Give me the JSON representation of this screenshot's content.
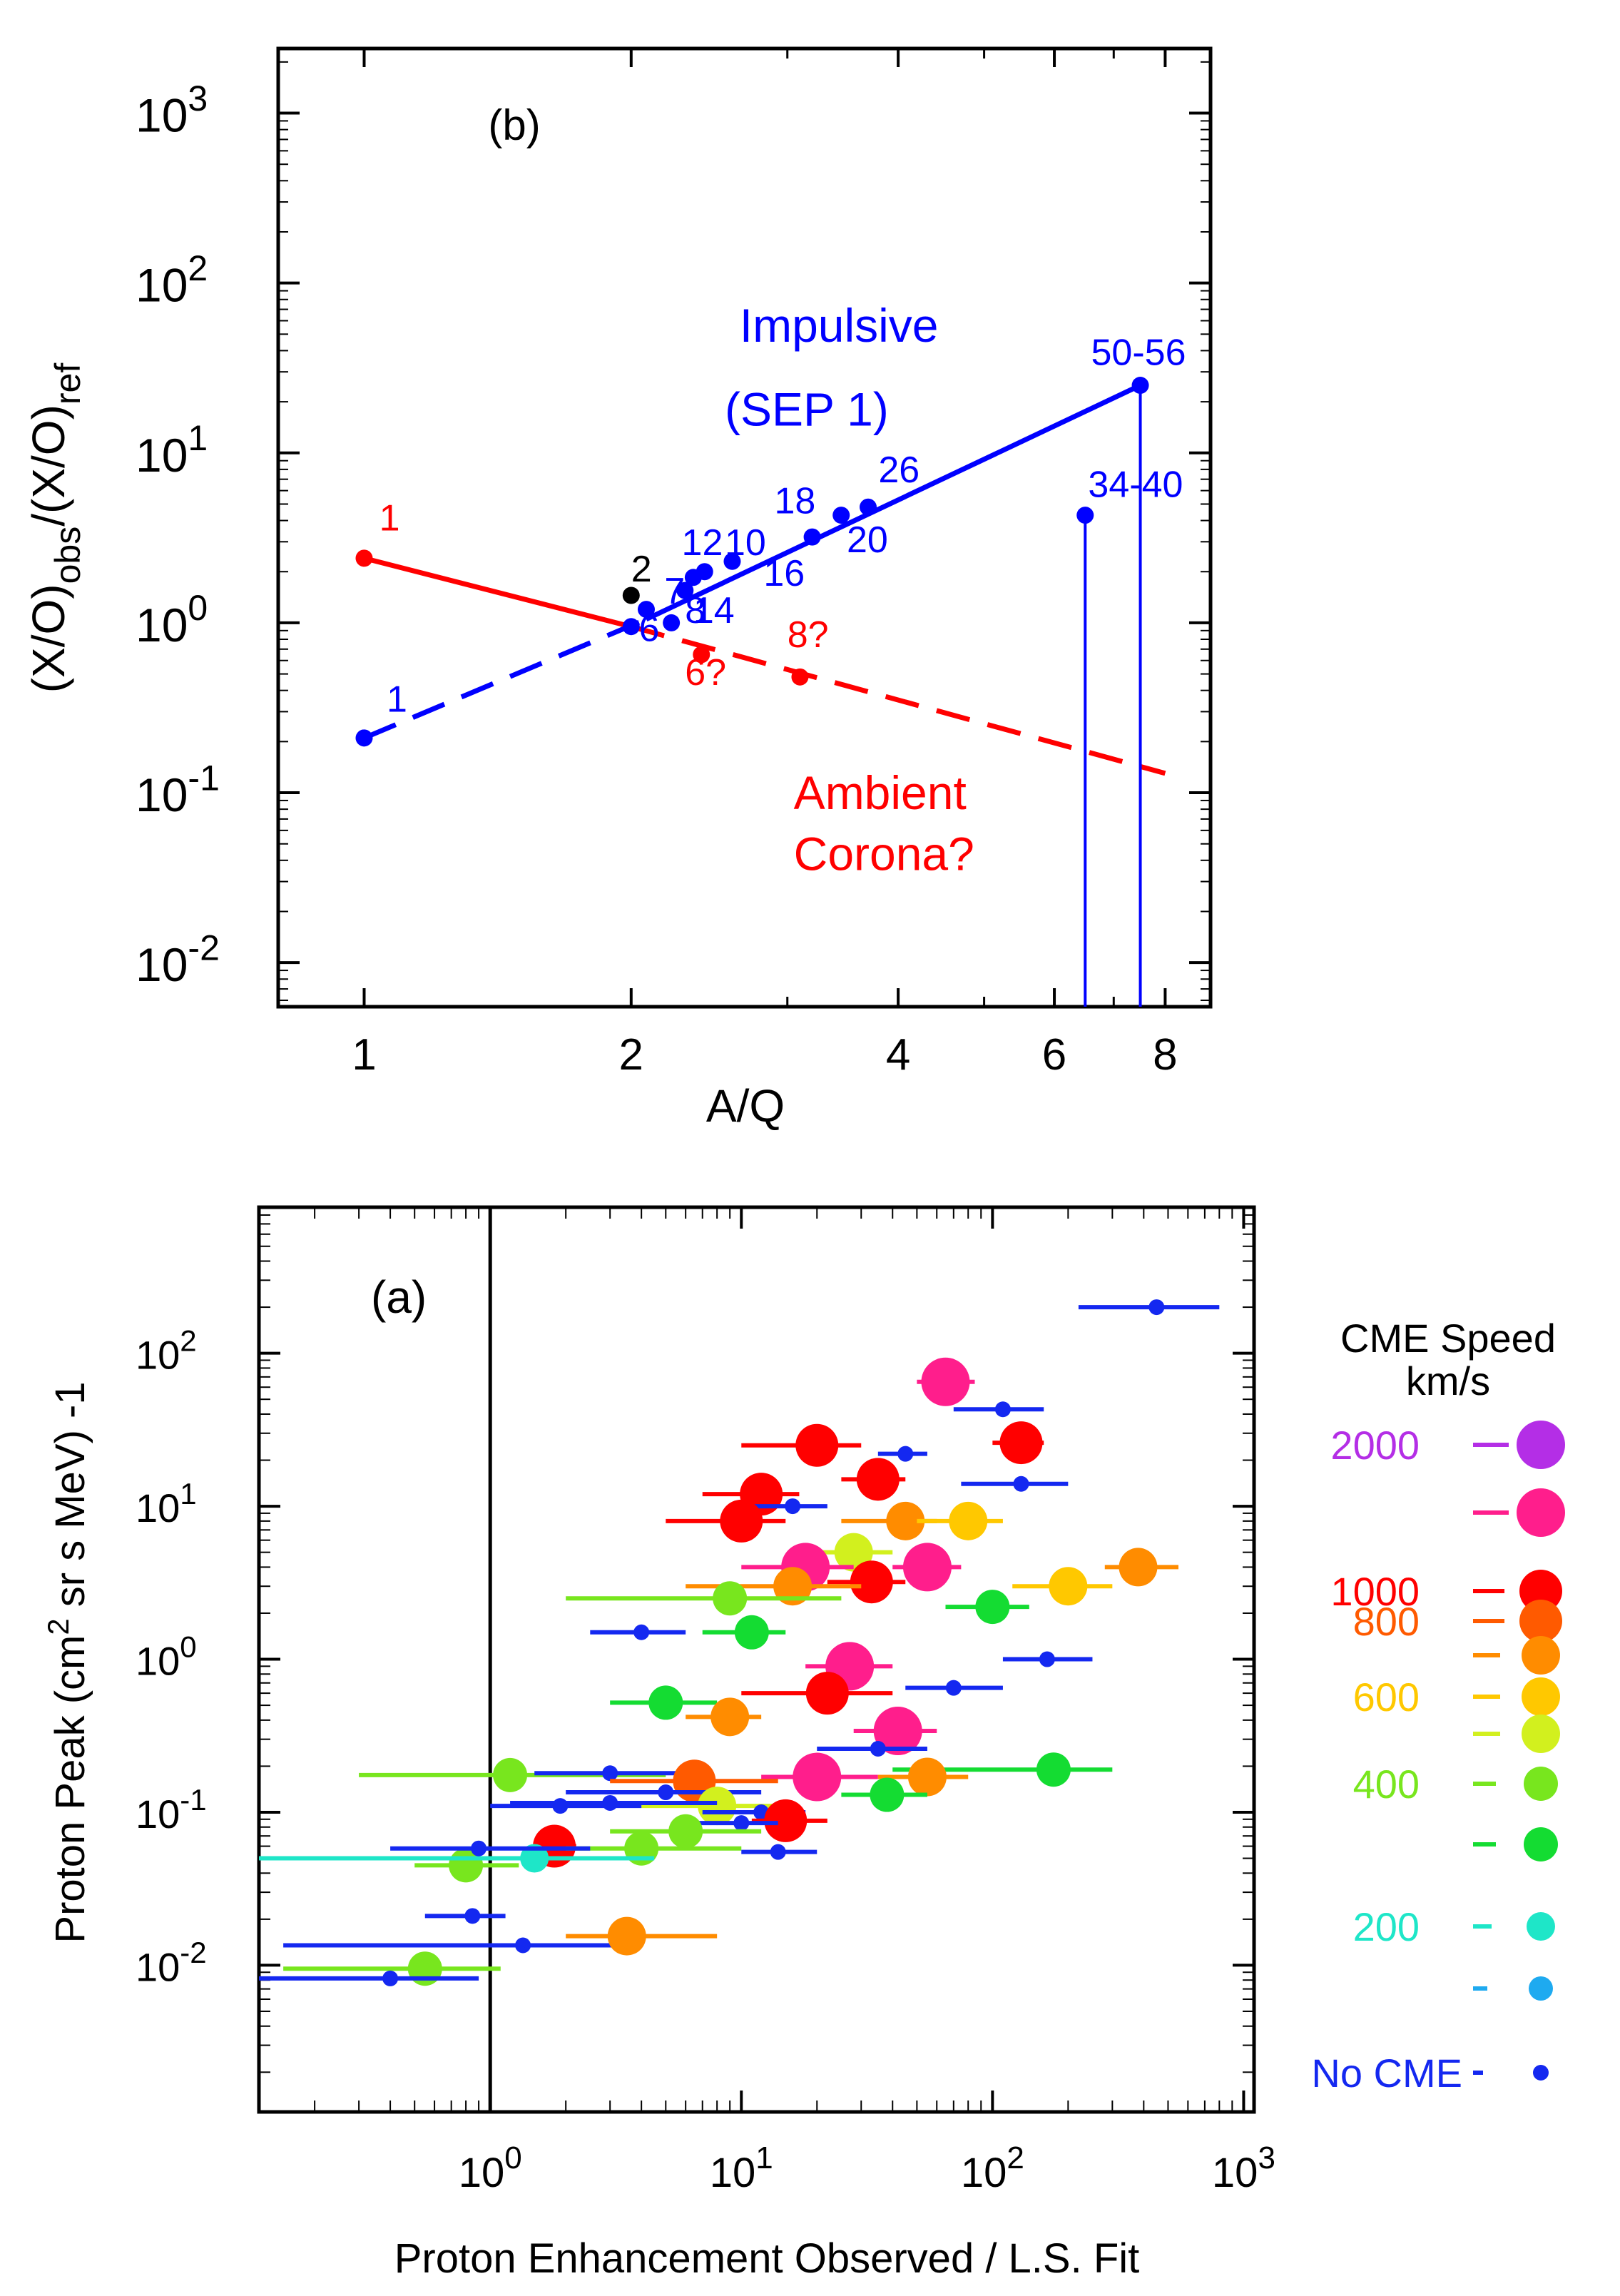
{
  "chart_data": [
    {
      "type": "line",
      "panel": "(b)",
      "xscale": "log",
      "yscale": "log",
      "xlim": [
        0.8,
        9.0
      ],
      "ylim": [
        0.0055,
        2400
      ],
      "xlabel": "A/Q",
      "ylabel_parts": [
        "(X/O)",
        "obs",
        "/(X/O)",
        "ref"
      ],
      "xticks": [
        {
          "v": 1,
          "label": "1"
        },
        {
          "v": 2,
          "label": "2"
        },
        {
          "v": 4,
          "label": "4"
        },
        {
          "v": 6,
          "label": "6"
        },
        {
          "v": 8,
          "label": "8"
        }
      ],
      "yticks": [
        {
          "v": 1000,
          "base": "10",
          "exp": "3"
        },
        {
          "v": 100,
          "base": "10",
          "exp": "2"
        },
        {
          "v": 10,
          "base": "10",
          "exp": "1"
        },
        {
          "v": 1,
          "base": "10",
          "exp": "0"
        },
        {
          "v": 0.1,
          "base": "10",
          "exp": "-1"
        },
        {
          "v": 0.01,
          "base": "10",
          "exp": "-2"
        }
      ],
      "series": [
        {
          "name": "Impulsive (SEP 1) fit",
          "color": "#0000ff",
          "style": "solid",
          "points": [
            [
              2.08,
              1.05
            ],
            [
              7.5,
              25
            ]
          ]
        },
        {
          "name": "Impulsive extrapolation",
          "color": "#0000ff",
          "style": "dashed",
          "points": [
            [
              1.0,
              0.21
            ],
            [
              2.08,
              1.05
            ]
          ]
        },
        {
          "name": "Ambient corona fit",
          "color": "#ff0000",
          "style": "solid",
          "points": [
            [
              1.0,
              2.4
            ],
            [
              2.0,
              0.95
            ]
          ]
        },
        {
          "name": "Ambient corona extrapolation",
          "color": "#ff0000",
          "style": "dashed",
          "points": [
            [
              2.0,
              0.95
            ],
            [
              8.0,
              0.13
            ]
          ]
        }
      ],
      "points": [
        {
          "x": 1.0,
          "y": 2.4,
          "color": "#ff0000",
          "label": "1",
          "lx": 1.04,
          "ly": 3.5
        },
        {
          "x": 1.0,
          "y": 0.21,
          "color": "#0000ff",
          "label": "1",
          "lx": 1.06,
          "ly": 0.3
        },
        {
          "x": 2.0,
          "y": 1.45,
          "color": "#000000",
          "label": "2",
          "lx": 2.0,
          "ly": 1.75
        },
        {
          "x": 2.08,
          "y": 1.2,
          "color": "#0000ff",
          "label": "7",
          "lx": 2.18,
          "ly": 1.3
        },
        {
          "x": 2.0,
          "y": 0.95,
          "color": "#0000ff",
          "label": "6",
          "lx": 2.04,
          "ly": 0.78
        },
        {
          "x": 2.3,
          "y": 1.55,
          "color": "#0000ff",
          "label": "12",
          "lx": 2.28,
          "ly": 2.5
        },
        {
          "x": 2.35,
          "y": 1.85,
          "color": "#0000ff",
          "label": "10",
          "lx": 2.55,
          "ly": 2.5
        },
        {
          "x": 2.42,
          "y": 2.0,
          "color": "#0000ff",
          "label": "16",
          "lx": 2.82,
          "ly": 1.65
        },
        {
          "x": 2.22,
          "y": 1.0,
          "color": "#0000ff",
          "label": "14",
          "lx": 2.35,
          "ly": 1.0
        },
        {
          "x": 2.6,
          "y": 2.3,
          "color": "#0000ff",
          "label": "8",
          "lx": 2.3,
          "ly": 1.0
        },
        {
          "x": 3.2,
          "y": 3.2,
          "color": "#0000ff",
          "label": "18",
          "lx": 2.9,
          "ly": 4.4
        },
        {
          "x": 3.45,
          "y": 4.3,
          "color": "#0000ff",
          "label": "20",
          "lx": 3.5,
          "ly": 2.6
        },
        {
          "x": 3.7,
          "y": 4.8,
          "color": "#0000ff",
          "label": "26",
          "lx": 3.8,
          "ly": 6.7
        },
        {
          "x": 2.4,
          "y": 0.65,
          "color": "#ff0000",
          "label": "6?",
          "lx": 2.3,
          "ly": 0.43
        },
        {
          "x": 3.1,
          "y": 0.48,
          "color": "#ff0000",
          "label": "8?",
          "lx": 3.0,
          "ly": 0.72
        },
        {
          "x": 6.5,
          "y": 4.3,
          "color": "#0000ff",
          "label": "34-40",
          "lx": 6.55,
          "ly": 5.5
        },
        {
          "x": 7.5,
          "y": 25,
          "color": "#0000ff",
          "label": "50-56",
          "lx": 6.6,
          "ly": 33
        }
      ],
      "upper_limits": [
        {
          "x": 6.5,
          "y": 4.3,
          "color": "#0000ff"
        },
        {
          "x": 7.5,
          "y": 25,
          "color": "#0000ff"
        }
      ],
      "annotations": [
        {
          "text": "(b)",
          "x": 1.38,
          "y": 700,
          "color": "#000000"
        },
        {
          "text": "Impulsive",
          "x": 2.65,
          "y": 45,
          "color": "#0000ff"
        },
        {
          "text": "(SEP 1)",
          "x": 2.55,
          "y": 14.5,
          "color": "#0000ff"
        },
        {
          "text": "Ambient",
          "x": 3.05,
          "y": 0.08,
          "color": "#ff0000"
        },
        {
          "text": "Corona?",
          "x": 3.05,
          "y": 0.035,
          "color": "#ff0000"
        }
      ]
    },
    {
      "type": "scatter",
      "panel": "(a)",
      "xscale": "log",
      "yscale": "log",
      "xlim": [
        0.12,
        1100
      ],
      "ylim": [
        0.0011,
        900
      ],
      "xlabel": "Proton Enhancement Observed / L.S. Fit",
      "ylabel": "Proton Peak (cm2 sr s MeV) -1",
      "ylabel_parts": [
        "Proton Peak (cm",
        "2",
        " sr s MeV) -1"
      ],
      "vertical_line_x": 1,
      "xticks": [
        {
          "v": 1,
          "base": "10",
          "exp": "0"
        },
        {
          "v": 10,
          "base": "10",
          "exp": "1"
        },
        {
          "v": 100,
          "base": "10",
          "exp": "2"
        },
        {
          "v": 1000,
          "base": "10",
          "exp": "3"
        }
      ],
      "yticks": [
        {
          "v": 100,
          "base": "10",
          "exp": "2"
        },
        {
          "v": 10,
          "base": "10",
          "exp": "1"
        },
        {
          "v": 1,
          "base": "10",
          "exp": "0"
        },
        {
          "v": 0.1,
          "base": "10",
          "exp": "-1"
        },
        {
          "v": 0.01,
          "base": "10",
          "exp": "-2"
        }
      ],
      "annotation": "(a)",
      "legend": {
        "title": "CME Speed",
        "subtitle": "km/s",
        "entries": [
          {
            "label": "2000",
            "color": "#b42ee6",
            "size": 7
          },
          {
            "label": "",
            "color": "#ff1e8c",
            "size": 7
          },
          {
            "label": "1000",
            "color": "#ff0000",
            "size": 6
          },
          {
            "label": "800",
            "color": "#ff5a00",
            "size": 6
          },
          {
            "label": "",
            "color": "#ff8c00",
            "size": 5
          },
          {
            "label": "600",
            "color": "#ffc800",
            "size": 5
          },
          {
            "label": "",
            "color": "#d2f01e",
            "size": 5
          },
          {
            "label": "400",
            "color": "#78e61e",
            "size": 4
          },
          {
            "label": "",
            "color": "#14dc32",
            "size": 4
          },
          {
            "label": "200",
            "color": "#1ee6c8",
            "size": 3
          },
          {
            "label": "",
            "color": "#1eaaf0",
            "size": 2
          },
          {
            "label": "No CME",
            "color": "#1428f0",
            "size": 1
          }
        ]
      },
      "points": [
        {
          "x": 450,
          "y": 200,
          "xlo": 220,
          "xhi": 800,
          "color": "#1428f0",
          "size": 1
        },
        {
          "x": 65,
          "y": 65,
          "xlo": 50,
          "xhi": 85,
          "color": "#ff1e8c",
          "size": 7
        },
        {
          "x": 110,
          "y": 43,
          "xlo": 70,
          "xhi": 160,
          "color": "#1428f0",
          "size": 1
        },
        {
          "x": 20,
          "y": 25,
          "xlo": 10,
          "xhi": 30,
          "color": "#ff0000",
          "size": 6
        },
        {
          "x": 130,
          "y": 26,
          "xlo": 100,
          "xhi": 160,
          "color": "#ff0000",
          "size": 6
        },
        {
          "x": 45,
          "y": 22,
          "xlo": 35,
          "xhi": 55,
          "color": "#1428f0",
          "size": 1
        },
        {
          "x": 35,
          "y": 15,
          "xlo": 25,
          "xhi": 45,
          "color": "#ff0000",
          "size": 6
        },
        {
          "x": 130,
          "y": 14,
          "xlo": 75,
          "xhi": 200,
          "color": "#1428f0",
          "size": 1
        },
        {
          "x": 12,
          "y": 12,
          "xlo": 7,
          "xhi": 17,
          "color": "#ff0000",
          "size": 6
        },
        {
          "x": 16,
          "y": 10,
          "xlo": 11,
          "xhi": 22,
          "color": "#1428f0",
          "size": 1
        },
        {
          "x": 10,
          "y": 8,
          "xlo": 5,
          "xhi": 15,
          "color": "#ff0000",
          "size": 6
        },
        {
          "x": 45,
          "y": 8,
          "xlo": 25,
          "xhi": 60,
          "color": "#ff8c00",
          "size": 5
        },
        {
          "x": 80,
          "y": 8,
          "xlo": 50,
          "xhi": 110,
          "color": "#ffc800",
          "size": 5
        },
        {
          "x": 28,
          "y": 5,
          "xlo": 18,
          "xhi": 40,
          "color": "#d2f01e",
          "size": 5
        },
        {
          "x": 18,
          "y": 4,
          "xlo": 10,
          "xhi": 28,
          "color": "#ff1e8c",
          "size": 7
        },
        {
          "x": 55,
          "y": 4,
          "xlo": 40,
          "xhi": 75,
          "color": "#ff1e8c",
          "size": 7
        },
        {
          "x": 380,
          "y": 4,
          "xlo": 280,
          "xhi": 550,
          "color": "#ff8c00",
          "size": 5
        },
        {
          "x": 33,
          "y": 3.2,
          "xlo": 22,
          "xhi": 45,
          "color": "#ff0000",
          "size": 6
        },
        {
          "x": 16,
          "y": 3,
          "xlo": 6,
          "xhi": 30,
          "color": "#ff8c00",
          "size": 5
        },
        {
          "x": 200,
          "y": 3,
          "xlo": 120,
          "xhi": 300,
          "color": "#ffc800",
          "size": 5
        },
        {
          "x": 9,
          "y": 2.5,
          "xlo": 2,
          "xhi": 25,
          "color": "#78e61e",
          "size": 4
        },
        {
          "x": 100,
          "y": 2.2,
          "xlo": 65,
          "xhi": 140,
          "color": "#14dc32",
          "size": 4
        },
        {
          "x": 11,
          "y": 1.5,
          "xlo": 7,
          "xhi": 15,
          "color": "#14dc32",
          "size": 4
        },
        {
          "x": 4,
          "y": 1.5,
          "xlo": 2.5,
          "xhi": 6,
          "color": "#1428f0",
          "size": 1
        },
        {
          "x": 27,
          "y": 0.9,
          "xlo": 18,
          "xhi": 40,
          "color": "#ff1e8c",
          "size": 7
        },
        {
          "x": 165,
          "y": 1.0,
          "xlo": 110,
          "xhi": 250,
          "color": "#1428f0",
          "size": 1
        },
        {
          "x": 22,
          "y": 0.6,
          "xlo": 10,
          "xhi": 40,
          "color": "#ff0000",
          "size": 6
        },
        {
          "x": 70,
          "y": 0.65,
          "xlo": 45,
          "xhi": 110,
          "color": "#1428f0",
          "size": 1
        },
        {
          "x": 5,
          "y": 0.52,
          "xlo": 3,
          "xhi": 8,
          "color": "#14dc32",
          "size": 4
        },
        {
          "x": 9,
          "y": 0.42,
          "xlo": 6,
          "xhi": 12,
          "color": "#ff8c00",
          "size": 5
        },
        {
          "x": 42,
          "y": 0.34,
          "xlo": 28,
          "xhi": 60,
          "color": "#ff1e8c",
          "size": 7
        },
        {
          "x": 35,
          "y": 0.26,
          "xlo": 20,
          "xhi": 55,
          "color": "#1428f0",
          "size": 1
        },
        {
          "x": 175,
          "y": 0.19,
          "xlo": 40,
          "xhi": 300,
          "color": "#14dc32",
          "size": 4
        },
        {
          "x": 1.2,
          "y": 0.175,
          "xlo": 0.3,
          "xhi": 5,
          "color": "#78e61e",
          "size": 4
        },
        {
          "x": 3,
          "y": 0.18,
          "xlo": 1.5,
          "xhi": 6,
          "color": "#1428f0",
          "size": 1
        },
        {
          "x": 20,
          "y": 0.17,
          "xlo": 12,
          "xhi": 35,
          "color": "#ff1e8c",
          "size": 7
        },
        {
          "x": 55,
          "y": 0.17,
          "xlo": 35,
          "xhi": 80,
          "color": "#ff8c00",
          "size": 5
        },
        {
          "x": 6.5,
          "y": 0.16,
          "xlo": 3,
          "xhi": 14,
          "color": "#ff5a00",
          "size": 6
        },
        {
          "x": 5,
          "y": 0.135,
          "xlo": 2,
          "xhi": 12,
          "color": "#1428f0",
          "size": 1
        },
        {
          "x": 38,
          "y": 0.13,
          "xlo": 25,
          "xhi": 55,
          "color": "#14dc32",
          "size": 4
        },
        {
          "x": 8,
          "y": 0.11,
          "xlo": 4,
          "xhi": 15,
          "color": "#d2f01e",
          "size": 5
        },
        {
          "x": 12,
          "y": 0.1,
          "xlo": 7,
          "xhi": 18,
          "color": "#1428f0",
          "size": 1
        },
        {
          "x": 1.9,
          "y": 0.11,
          "xlo": 1,
          "xhi": 4,
          "color": "#1428f0",
          "size": 1
        },
        {
          "x": 3,
          "y": 0.115,
          "xlo": 1.2,
          "xhi": 8,
          "color": "#1428f0",
          "size": 1
        },
        {
          "x": 15,
          "y": 0.088,
          "xlo": 11,
          "xhi": 22,
          "color": "#ff0000",
          "size": 6
        },
        {
          "x": 10,
          "y": 0.085,
          "xlo": 6,
          "xhi": 14,
          "color": "#1428f0",
          "size": 1
        },
        {
          "x": 1.8,
          "y": 0.06,
          "xlo": 1.5,
          "xhi": 2.2,
          "color": "#ff0000",
          "size": 6
        },
        {
          "x": 4,
          "y": 0.058,
          "xlo": 2,
          "xhi": 10,
          "color": "#78e61e",
          "size": 4
        },
        {
          "x": 6,
          "y": 0.075,
          "xlo": 3,
          "xhi": 12,
          "color": "#78e61e",
          "size": 4
        },
        {
          "x": 14,
          "y": 0.055,
          "xlo": 10,
          "xhi": 20,
          "color": "#1428f0",
          "size": 1
        },
        {
          "x": 0.8,
          "y": 0.045,
          "xlo": 0.5,
          "xhi": 1.3,
          "color": "#78e61e",
          "size": 4
        },
        {
          "x": 1.5,
          "y": 0.05,
          "xlo": 0.12,
          "xhi": 4.5,
          "color": "#1ee6c8",
          "size": 3
        },
        {
          "x": 0.9,
          "y": 0.058,
          "xlo": 0.4,
          "xhi": 2.5,
          "color": "#1428f0",
          "size": 1
        },
        {
          "x": 0.85,
          "y": 0.021,
          "xlo": 0.55,
          "xhi": 1.15,
          "color": "#1428f0",
          "size": 1
        },
        {
          "x": 1.35,
          "y": 0.0135,
          "xlo": 0.15,
          "xhi": 3.5,
          "color": "#1428f0",
          "size": 1
        },
        {
          "x": 3.5,
          "y": 0.0155,
          "xlo": 2,
          "xhi": 8,
          "color": "#ff8c00",
          "size": 5
        },
        {
          "x": 0.55,
          "y": 0.0095,
          "xlo": 0.15,
          "xhi": 1.1,
          "color": "#78e61e",
          "size": 4
        },
        {
          "x": 0.4,
          "y": 0.0082,
          "xlo": 0.12,
          "xhi": 0.9,
          "color": "#1428f0",
          "size": 1
        }
      ]
    }
  ]
}
